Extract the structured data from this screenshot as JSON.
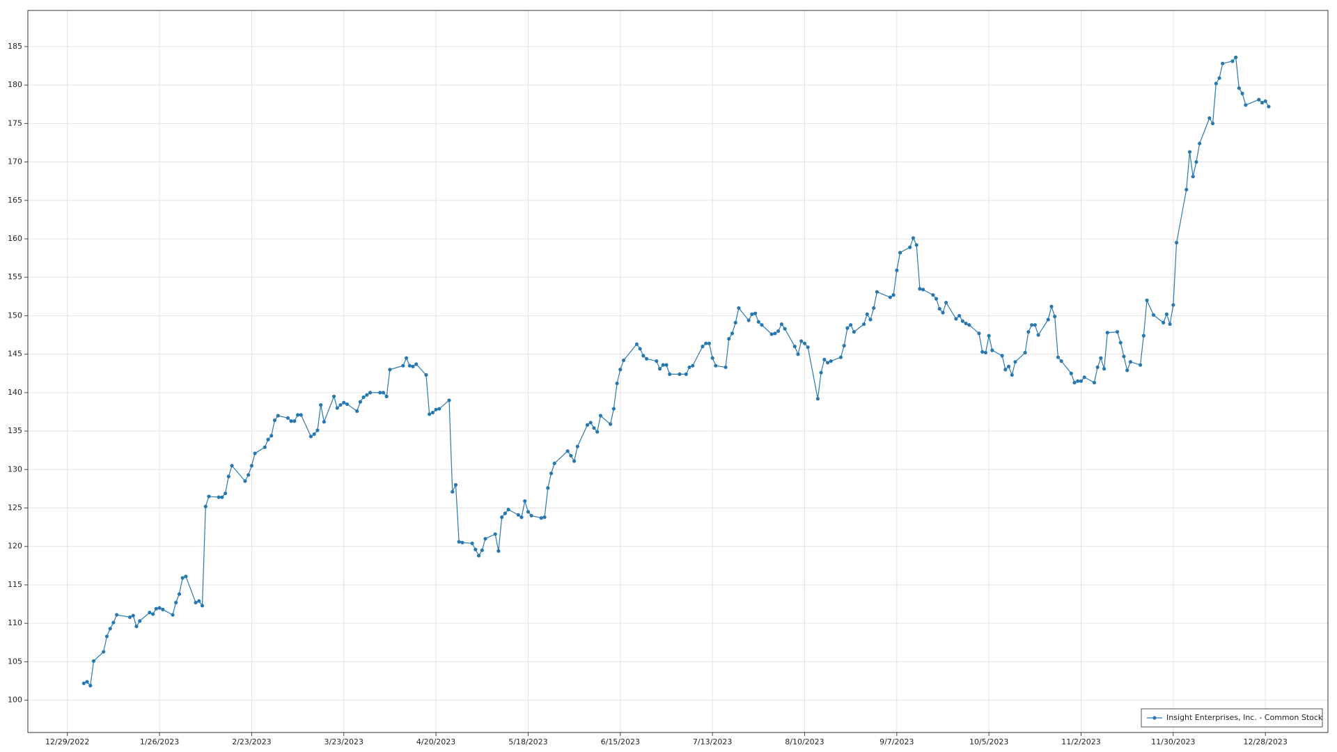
{
  "chart_data": {
    "type": "line",
    "x": [
      "1/3/2023",
      "1/4/2023",
      "1/5/2023",
      "1/6/2023",
      "1/9/2023",
      "1/10/2023",
      "1/11/2023",
      "1/12/2023",
      "1/13/2023",
      "1/17/2023",
      "1/18/2023",
      "1/19/2023",
      "1/20/2023",
      "1/23/2023",
      "1/24/2023",
      "1/25/2023",
      "1/26/2023",
      "1/27/2023",
      "1/30/2023",
      "1/31/2023",
      "2/1/2023",
      "2/2/2023",
      "2/3/2023",
      "2/6/2023",
      "2/7/2023",
      "2/8/2023",
      "2/9/2023",
      "2/10/2023",
      "2/13/2023",
      "2/14/2023",
      "2/15/2023",
      "2/16/2023",
      "2/17/2023",
      "2/21/2023",
      "2/22/2023",
      "2/23/2023",
      "2/24/2023",
      "2/27/2023",
      "2/28/2023",
      "3/1/2023",
      "3/2/2023",
      "3/3/2023",
      "3/6/2023",
      "3/7/2023",
      "3/8/2023",
      "3/9/2023",
      "3/10/2023",
      "3/13/2023",
      "3/14/2023",
      "3/15/2023",
      "3/16/2023",
      "3/17/2023",
      "3/20/2023",
      "3/21/2023",
      "3/22/2023",
      "3/23/2023",
      "3/24/2023",
      "3/27/2023",
      "3/28/2023",
      "3/29/2023",
      "3/30/2023",
      "3/31/2023",
      "4/3/2023",
      "4/4/2023",
      "4/5/2023",
      "4/6/2023",
      "4/10/2023",
      "4/11/2023",
      "4/12/2023",
      "4/13/2023",
      "4/14/2023",
      "4/17/2023",
      "4/18/2023",
      "4/19/2023",
      "4/20/2023",
      "4/21/2023",
      "4/24/2023",
      "4/25/2023",
      "4/26/2023",
      "4/27/2023",
      "4/28/2023",
      "5/1/2023",
      "5/2/2023",
      "5/3/2023",
      "5/4/2023",
      "5/5/2023",
      "5/8/2023",
      "5/9/2023",
      "5/10/2023",
      "5/11/2023",
      "5/12/2023",
      "5/15/2023",
      "5/16/2023",
      "5/17/2023",
      "5/18/2023",
      "5/19/2023",
      "5/22/2023",
      "5/23/2023",
      "5/24/2023",
      "5/25/2023",
      "5/26/2023",
      "5/30/2023",
      "5/31/2023",
      "6/1/2023",
      "6/2/2023",
      "6/5/2023",
      "6/6/2023",
      "6/7/2023",
      "6/8/2023",
      "6/9/2023",
      "6/12/2023",
      "6/13/2023",
      "6/14/2023",
      "6/15/2023",
      "6/16/2023",
      "6/20/2023",
      "6/21/2023",
      "6/22/2023",
      "6/23/2023",
      "6/26/2023",
      "6/27/2023",
      "6/28/2023",
      "6/29/2023",
      "6/30/2023",
      "7/3/2023",
      "7/5/2023",
      "7/6/2023",
      "7/7/2023",
      "7/10/2023",
      "7/11/2023",
      "7/12/2023",
      "7/13/2023",
      "7/14/2023",
      "7/17/2023",
      "7/18/2023",
      "7/19/2023",
      "7/20/2023",
      "7/21/2023",
      "7/24/2023",
      "7/25/2023",
      "7/26/2023",
      "7/27/2023",
      "7/28/2023",
      "7/31/2023",
      "8/1/2023",
      "8/2/2023",
      "8/3/2023",
      "8/4/2023",
      "8/7/2023",
      "8/8/2023",
      "8/9/2023",
      "8/10/2023",
      "8/11/2023",
      "8/14/2023",
      "8/15/2023",
      "8/16/2023",
      "8/17/2023",
      "8/18/2023",
      "8/21/2023",
      "8/22/2023",
      "8/23/2023",
      "8/24/2023",
      "8/25/2023",
      "8/28/2023",
      "8/29/2023",
      "8/30/2023",
      "8/31/2023",
      "9/1/2023",
      "9/5/2023",
      "9/6/2023",
      "9/7/2023",
      "9/8/2023",
      "9/11/2023",
      "9/12/2023",
      "9/13/2023",
      "9/14/2023",
      "9/15/2023",
      "9/18/2023",
      "9/19/2023",
      "9/20/2023",
      "9/21/2023",
      "9/22/2023",
      "9/25/2023",
      "9/26/2023",
      "9/27/2023",
      "9/28/2023",
      "9/29/2023",
      "10/2/2023",
      "10/3/2023",
      "10/4/2023",
      "10/5/2023",
      "10/6/2023",
      "10/9/2023",
      "10/10/2023",
      "10/11/2023",
      "10/12/2023",
      "10/13/2023",
      "10/16/2023",
      "10/17/2023",
      "10/18/2023",
      "10/19/2023",
      "10/20/2023",
      "10/23/2023",
      "10/24/2023",
      "10/25/2023",
      "10/26/2023",
      "10/27/2023",
      "10/30/2023",
      "10/31/2023",
      "11/1/2023",
      "11/2/2023",
      "11/3/2023",
      "11/6/2023",
      "11/7/2023",
      "11/8/2023",
      "11/9/2023",
      "11/10/2023",
      "11/13/2023",
      "11/14/2023",
      "11/15/2023",
      "11/16/2023",
      "11/17/2023",
      "11/20/2023",
      "11/21/2023",
      "11/22/2023",
      "11/24/2023",
      "11/27/2023",
      "11/28/2023",
      "11/29/2023",
      "11/30/2023",
      "12/1/2023",
      "12/4/2023",
      "12/5/2023",
      "12/6/2023",
      "12/7/2023",
      "12/8/2023",
      "12/11/2023",
      "12/12/2023",
      "12/13/2023",
      "12/14/2023",
      "12/15/2023",
      "12/18/2023",
      "12/19/2023",
      "12/20/2023",
      "12/21/2023",
      "12/22/2023",
      "12/26/2023",
      "12/27/2023",
      "12/28/2023",
      "12/29/2023"
    ],
    "series": [
      {
        "name": "Insight Enterprises, Inc. - Common Stock",
        "color": "#2878b0",
        "values": [
          102.2,
          102.4,
          101.9,
          105.1,
          106.3,
          108.3,
          109.3,
          110.1,
          111.1,
          110.8,
          111.0,
          109.6,
          110.3,
          111.4,
          111.2,
          111.9,
          112.0,
          111.8,
          111.1,
          112.7,
          113.8,
          115.9,
          116.1,
          112.7,
          112.9,
          112.3,
          125.2,
          126.5,
          126.4,
          126.4,
          126.9,
          129.1,
          130.5,
          128.5,
          129.3,
          130.5,
          132.1,
          132.9,
          133.9,
          134.4,
          136.4,
          137.0,
          136.7,
          136.3,
          136.3,
          137.1,
          137.1,
          134.3,
          134.6,
          135.1,
          138.4,
          136.2,
          139.5,
          138.0,
          138.4,
          138.7,
          138.5,
          137.6,
          138.8,
          139.4,
          139.7,
          140.0,
          140.0,
          140.0,
          139.5,
          143.0,
          143.5,
          144.5,
          143.5,
          143.4,
          143.7,
          142.3,
          137.2,
          137.4,
          137.8,
          137.9,
          139.0,
          127.1,
          128.0,
          120.6,
          120.5,
          120.4,
          119.6,
          118.8,
          119.5,
          121.0,
          121.6,
          119.4,
          123.8,
          124.3,
          124.8,
          124.1,
          123.8,
          125.9,
          124.5,
          124.0,
          123.7,
          123.8,
          127.6,
          129.5,
          130.8,
          132.4,
          131.8,
          131.1,
          133.0,
          135.8,
          136.1,
          135.4,
          134.9,
          137.0,
          135.9,
          137.9,
          141.2,
          143.0,
          144.2,
          146.3,
          145.7,
          144.8,
          144.4,
          144.1,
          143.1,
          143.6,
          143.6,
          142.4,
          142.4,
          142.4,
          143.3,
          143.5,
          146.0,
          146.4,
          146.4,
          144.5,
          143.5,
          143.3,
          147.0,
          147.7,
          149.1,
          151.0,
          149.4,
          150.2,
          150.3,
          149.2,
          148.8,
          147.6,
          147.7,
          148.0,
          148.9,
          148.3,
          146.0,
          145.0,
          146.7,
          146.4,
          145.9,
          139.2,
          142.6,
          144.3,
          143.9,
          144.1,
          144.6,
          146.1,
          148.4,
          148.8,
          147.9,
          148.9,
          150.2,
          149.5,
          151.0,
          153.1,
          152.4,
          152.7,
          155.9,
          158.2,
          158.9,
          160.1,
          159.2,
          153.5,
          153.4,
          152.7,
          152.2,
          150.9,
          150.4,
          151.7,
          149.6,
          150.0,
          149.3,
          149.0,
          148.8,
          147.7,
          145.3,
          145.2,
          147.4,
          145.5,
          144.8,
          143.0,
          143.4,
          142.3,
          144.0,
          145.2,
          147.9,
          148.8,
          148.8,
          147.5,
          149.5,
          151.2,
          149.9,
          144.6,
          144.1,
          142.5,
          141.3,
          141.5,
          141.5,
          142.0,
          141.3,
          143.3,
          144.5,
          143.1,
          147.8,
          147.9,
          146.5,
          144.7,
          142.9,
          144.0,
          143.6,
          147.4,
          152.0,
          150.1,
          149.1,
          150.2,
          148.9,
          151.4,
          159.5,
          166.4,
          171.3,
          168.1,
          170.0,
          172.4,
          175.7,
          175.0,
          180.2,
          180.9,
          182.8,
          183.1,
          183.6,
          179.6,
          178.9,
          177.4,
          178.1,
          177.7,
          177.9,
          177.2
        ]
      }
    ],
    "xlim": [
      "12/17/2022",
      "1/16/2024"
    ],
    "xticks": [
      "12/29/2022",
      "1/26/2023",
      "2/23/2023",
      "3/23/2023",
      "4/20/2023",
      "5/18/2023",
      "6/15/2023",
      "7/13/2023",
      "8/10/2023",
      "9/7/2023",
      "10/5/2023",
      "11/2/2023",
      "11/30/2023",
      "12/28/2023"
    ],
    "ylim": [
      95.8,
      189.7
    ],
    "yticks": [
      100,
      105,
      110,
      115,
      120,
      125,
      130,
      135,
      140,
      145,
      150,
      155,
      160,
      165,
      170,
      175,
      180,
      185
    ],
    "grid": true,
    "legend": "lower right"
  }
}
